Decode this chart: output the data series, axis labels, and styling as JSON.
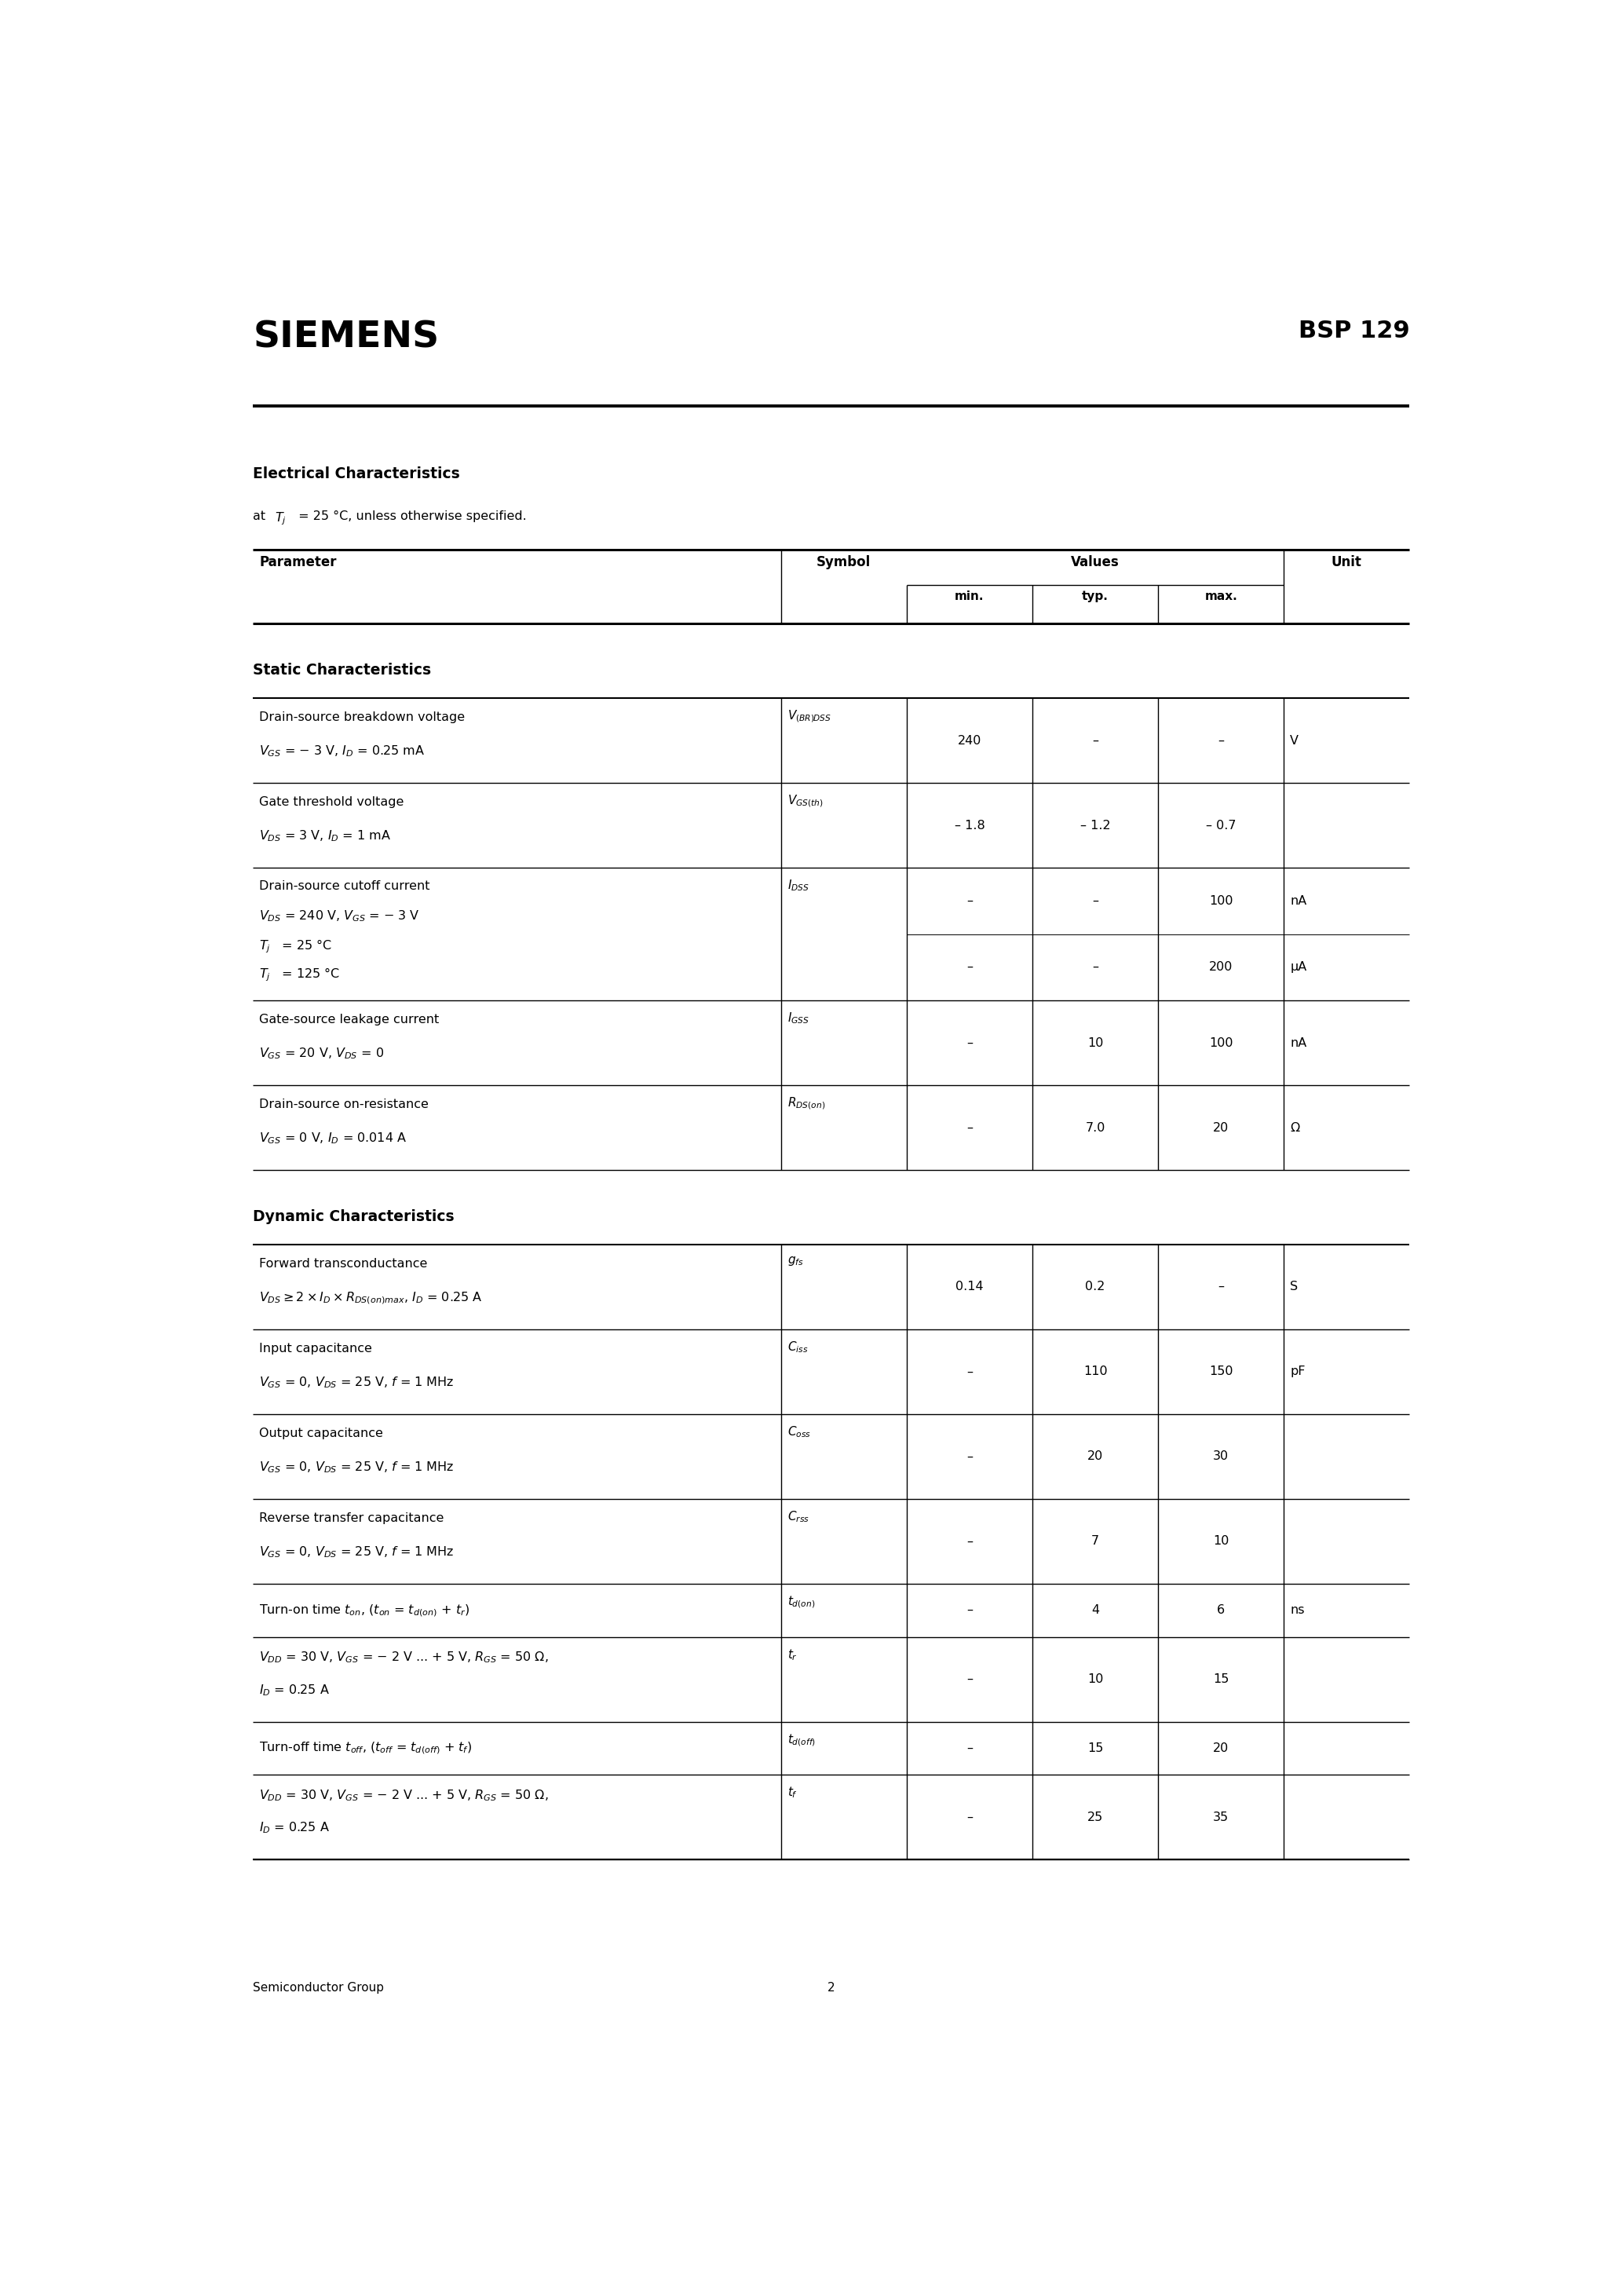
{
  "page_width": 20.66,
  "page_height": 29.24,
  "siemens": "SIEMENS",
  "bsp": "BSP 129",
  "elec_title": "Electrical Characteristics",
  "static_title": "Static Characteristics",
  "dynamic_title": "Dynamic Characteristics",
  "footer_left": "Semiconductor Group",
  "footer_num": "2",
  "c0": 0.04,
  "c1": 0.46,
  "c2": 0.56,
  "c3": 0.66,
  "c4": 0.76,
  "c5": 0.86,
  "c6": 0.96,
  "static_rows": [
    {
      "p1": "Drain-source breakdown voltage",
      "p2": "$V_{GS}$ = − 3 V, $I_D$ = 0.25 mA",
      "sym": "$V_{(BR)DSS}$",
      "min": "240",
      "typ": "–",
      "max": "–",
      "unit": "V",
      "nh": 2
    },
    {
      "p1": "Gate threshold voltage",
      "p2": "$V_{DS}$ = 3 V, $I_D$ = 1 mA",
      "sym": "$V_{GS(th)}$",
      "min": "– 1.8",
      "typ": "– 1.2",
      "max": "– 0.7",
      "unit": "",
      "nh": 2
    },
    {
      "p1": "Drain-source cutoff current",
      "p2": "$V_{DS}$ = 240 V, $V_{GS}$ = − 3 V",
      "p3": "$T_j$   = 25 °C",
      "p4": "$T_j$   = 125 °C",
      "sym": "$I_{DSS}$",
      "min": "–",
      "typ": "–",
      "max1": "100",
      "max2": "200",
      "unit1": "nA",
      "unit2": "μA",
      "nh": 4,
      "multi": true
    },
    {
      "p1": "Gate-source leakage current",
      "p2": "$V_{GS}$ = 20 V, $V_{DS}$ = 0",
      "sym": "$I_{GSS}$",
      "min": "–",
      "typ": "10",
      "max": "100",
      "unit": "nA",
      "nh": 2
    },
    {
      "p1": "Drain-source on-resistance",
      "p2": "$V_{GS}$ = 0 V, $I_D$ = 0.014 A",
      "sym": "$R_{DS(on)}$",
      "min": "–",
      "typ": "7.0",
      "max": "20",
      "unit": "Ω",
      "nh": 2
    }
  ],
  "dynamic_rows": [
    {
      "p1": "Forward transconductance",
      "p2": "$V_{DS} \\geq 2 \\times I_D \\times R_{DS(on)max}$, $I_D$ = 0.25 A",
      "sym": "$g_{fs}$",
      "min": "0.14",
      "typ": "0.2",
      "max": "–",
      "unit": "S",
      "nh": 2
    },
    {
      "p1": "Input capacitance",
      "p2": "$V_{GS}$ = 0, $V_{DS}$ = 25 V, $f$ = 1 MHz",
      "sym": "$C_{iss}$",
      "min": "–",
      "typ": "110",
      "max": "150",
      "unit": "pF",
      "nh": 2
    },
    {
      "p1": "Output capacitance",
      "p2": "$V_{GS}$ = 0, $V_{DS}$ = 25 V, $f$ = 1 MHz",
      "sym": "$C_{oss}$",
      "min": "–",
      "typ": "20",
      "max": "30",
      "unit": "",
      "nh": 2
    },
    {
      "p1": "Reverse transfer capacitance",
      "p2": "$V_{GS}$ = 0, $V_{DS}$ = 25 V, $f$ = 1 MHz",
      "sym": "$C_{rss}$",
      "min": "–",
      "typ": "7",
      "max": "10",
      "unit": "",
      "nh": 2
    },
    {
      "p1": "Turn-on time $t_{on}$, ($t_{on}$ = $t_{d(on)}$ + $t_r$)",
      "p2": "",
      "sym": "$t_{d(on)}$",
      "min": "–",
      "typ": "4",
      "max": "6",
      "unit": "ns",
      "nh": 1
    },
    {
      "p1": "$V_{DD}$ = 30 V, $V_{GS}$ = − 2 V ... + 5 V, $R_{GS}$ = 50 Ω,",
      "p2": "$I_D$ = 0.25 A",
      "sym": "$t_r$",
      "min": "–",
      "typ": "10",
      "max": "15",
      "unit": "",
      "nh": 2
    },
    {
      "p1": "Turn-off time $t_{off}$, ($t_{off}$ = $t_{d(off)}$ + $t_f$)",
      "p2": "",
      "sym": "$t_{d(off)}$",
      "min": "–",
      "typ": "15",
      "max": "20",
      "unit": "",
      "nh": 1
    },
    {
      "p1": "$V_{DD}$ = 30 V, $V_{GS}$ = − 2 V ... + 5 V, $R_{GS}$ = 50 Ω,",
      "p2": "$I_D$ = 0.25 A",
      "sym": "$t_f$",
      "min": "–",
      "typ": "25",
      "max": "35",
      "unit": "",
      "nh": 2
    }
  ]
}
